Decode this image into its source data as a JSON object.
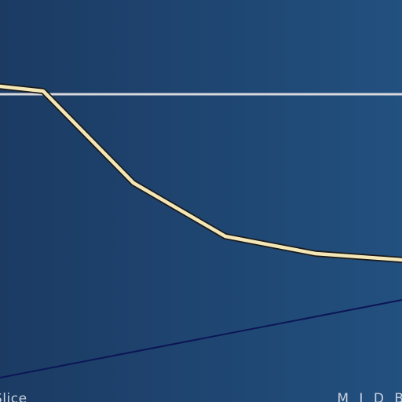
{
  "editor": {
    "bottom_left_label": "Slice",
    "bottom_right_label": "M I D   B"
  },
  "colors": {
    "background_left": "#1b3b63",
    "background_right": "#22507f",
    "reference_line": "#d9d9de",
    "curve_fill": "#f3e7b8",
    "curve_outline": "#1a1a1a",
    "diagonal_line": "#0c1656"
  }
}
